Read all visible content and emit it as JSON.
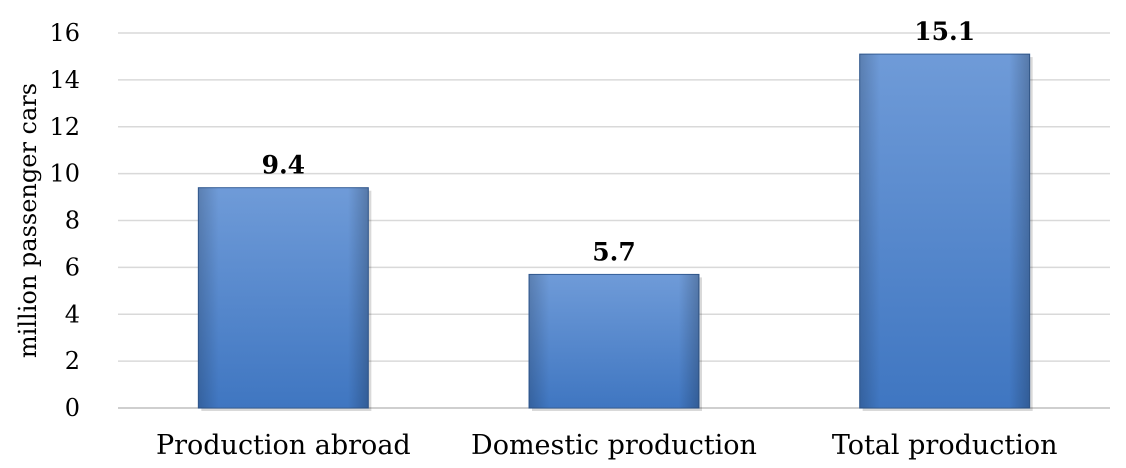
{
  "chart_data": {
    "type": "bar",
    "categories": [
      "Production abroad",
      "Domestic production",
      "Total production"
    ],
    "values": [
      9.4,
      5.7,
      15.1
    ],
    "data_labels": [
      "9.4",
      "5.7",
      "15.1"
    ],
    "title": "",
    "xlabel": "",
    "ylabel": "million passenger cars",
    "ylim": [
      0,
      16
    ],
    "yticks": [
      "0",
      "2",
      "4",
      "6",
      "8",
      "10",
      "12",
      "14",
      "16"
    ],
    "grid": true,
    "legend": "none"
  },
  "colors": {
    "bar_light": "#6f9bd8",
    "bar_dark": "#3f76c1",
    "bar_edge": "#355f98",
    "grid": "#d9d9d9",
    "axis": "#bfbfbf"
  }
}
